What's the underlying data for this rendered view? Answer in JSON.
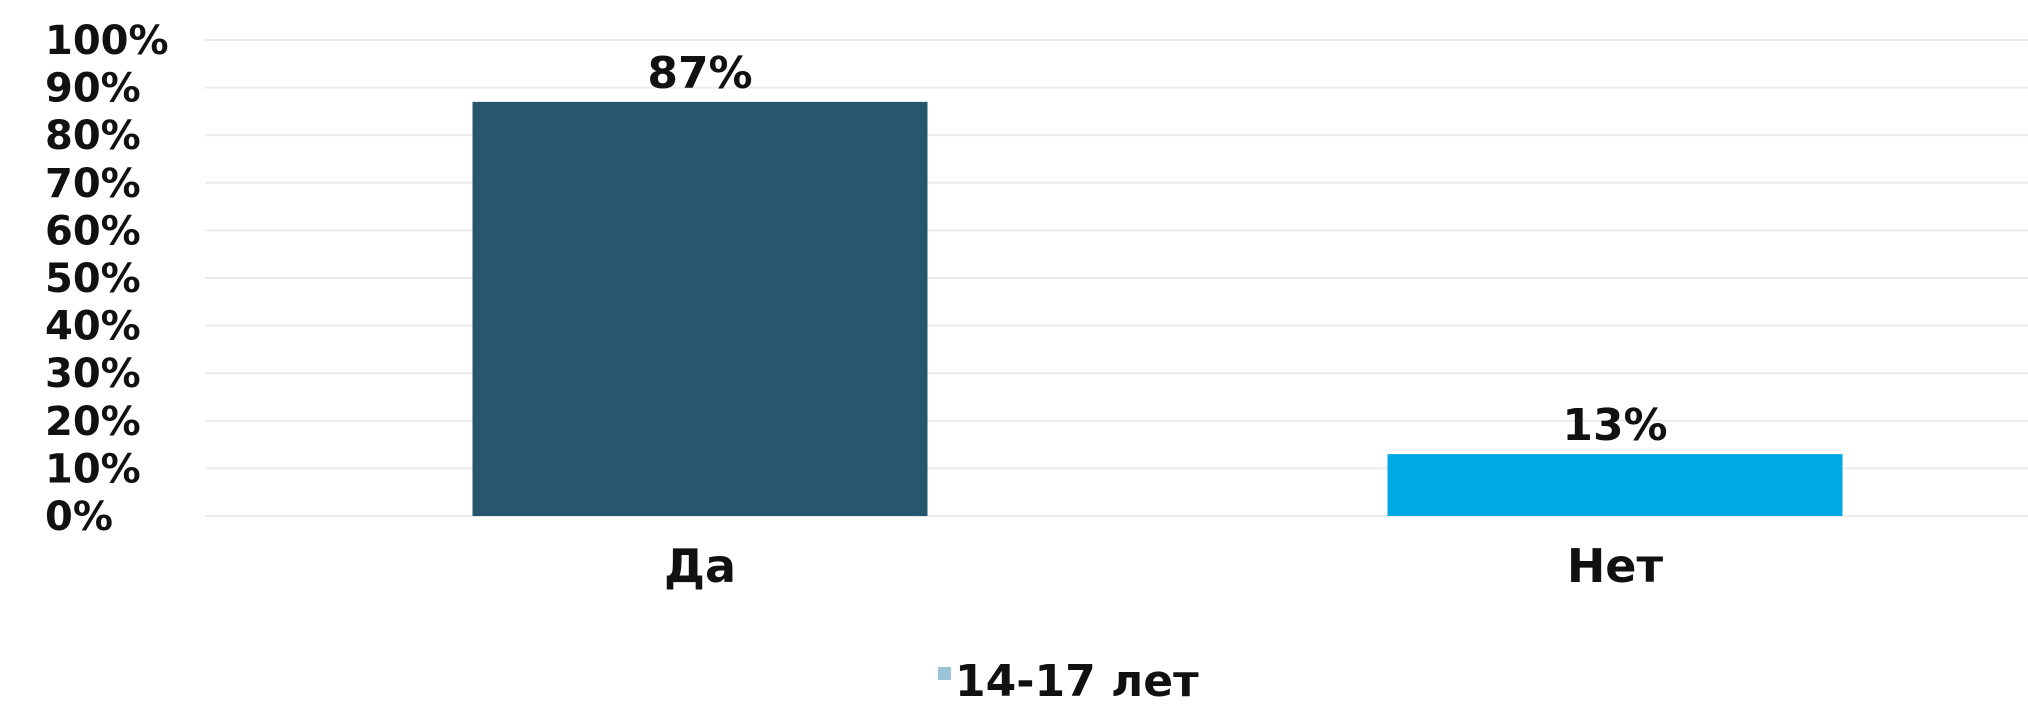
{
  "chart_data": {
    "type": "bar",
    "categories": [
      "Да",
      "Нет"
    ],
    "series": [
      {
        "name": "14-17 лет",
        "values": [
          87,
          13
        ],
        "colors": [
          "#27566f",
          "#00a9e3"
        ]
      }
    ],
    "data_labels": [
      "87%",
      "13%"
    ],
    "yticks": [
      "0%",
      "10%",
      "20%",
      "30%",
      "40%",
      "50%",
      "60%",
      "70%",
      "80%",
      "90%",
      "100%"
    ],
    "ylim": [
      0,
      100
    ],
    "grid": true,
    "legend_position": "bottom-center",
    "legend_swatch_color": "#9cc3d7"
  }
}
